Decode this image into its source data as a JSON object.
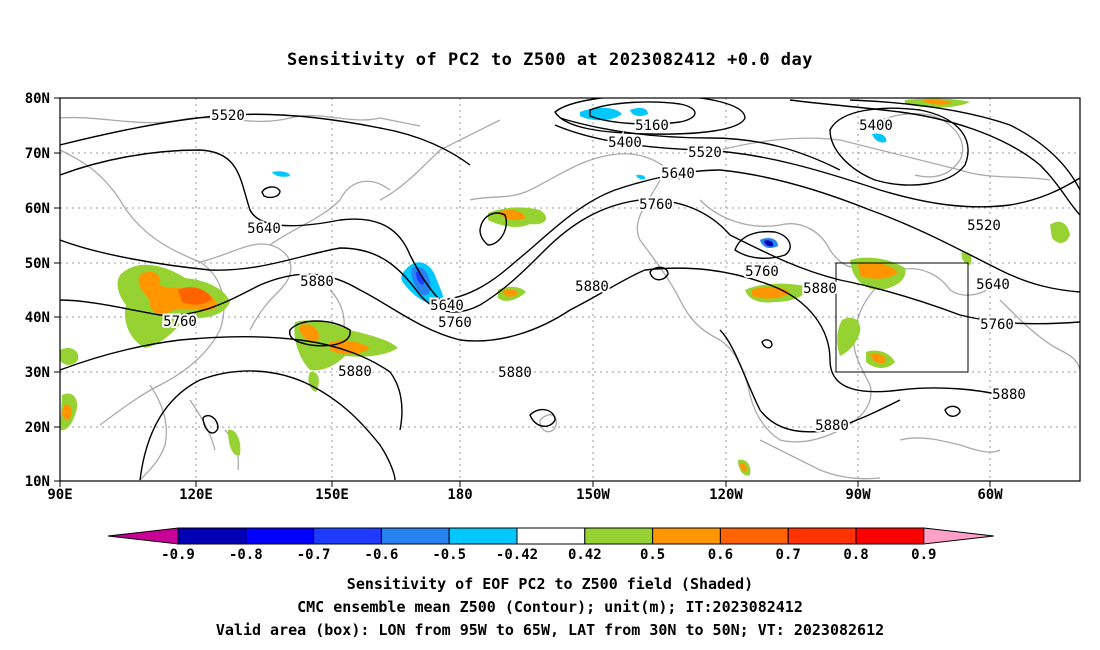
{
  "title": "Sensitivity of PC2 to Z500 at 2023082412 +0.0 day",
  "axes": {
    "lat_labels": [
      "80N",
      "70N",
      "60N",
      "50N",
      "40N",
      "30N",
      "20N",
      "10N"
    ],
    "lon_labels": [
      "90E",
      "120E",
      "150E",
      "180",
      "150W",
      "120W",
      "90W",
      "60W"
    ]
  },
  "contour_labels": [
    "5520",
    "5160",
    "5400",
    "5520",
    "5640",
    "5760",
    "5400",
    "5520",
    "5640",
    "5880",
    "5640",
    "5760",
    "5880",
    "5760",
    "5880",
    "5640",
    "5760",
    "5880",
    "5880",
    "5880",
    "5880",
    "5760"
  ],
  "colorbar": {
    "tick_labels": [
      "-0.9",
      "-0.8",
      "-0.7",
      "-0.6",
      "-0.5",
      "-0.42",
      "0.42",
      "0.5",
      "0.6",
      "0.7",
      "0.8",
      "0.9"
    ],
    "colors": [
      "#c80096",
      "#0000b4",
      "#0000ff",
      "#1e3cff",
      "#2882f0",
      "#00c8ff",
      "#ffffff",
      "#96d232",
      "#ff9600",
      "#ff6400",
      "#ff3200",
      "#ff0000",
      "#ffa0c8"
    ]
  },
  "captions": {
    "line1": "Sensitivity of EOF PC2 to Z500 field (Shaded)",
    "line2": "CMC ensemble mean Z500 (Contour); unit(m); IT:2023082412",
    "line3": "Valid area (box): LON from 95W to 65W, LAT from 30N to 50N; VT: 2023082612"
  }
}
